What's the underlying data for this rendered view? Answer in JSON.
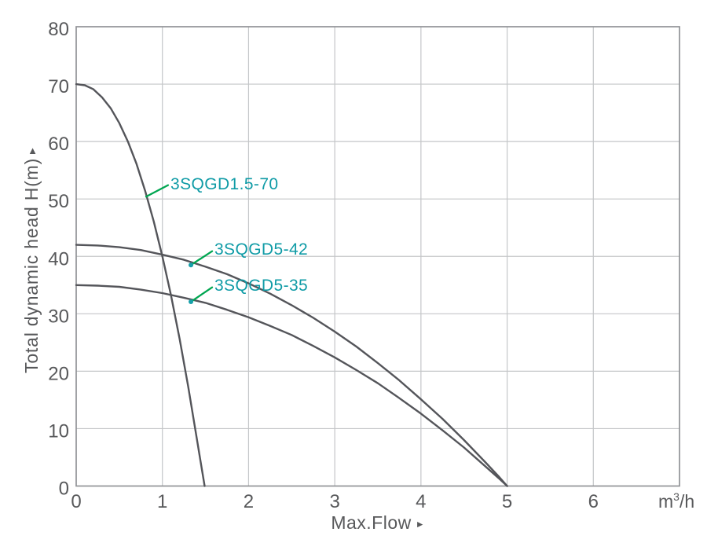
{
  "chart_data": {
    "type": "line",
    "title": "",
    "grid": true,
    "legend": "inline-annotations",
    "x_axis": {
      "title": "Max.Flow",
      "arrow": "►",
      "unit": "m³/h",
      "ticks": [
        0,
        1,
        2,
        3,
        4,
        5,
        6
      ],
      "tick_labels": [
        "0",
        "1",
        "2",
        "3",
        "4",
        "5",
        "6"
      ],
      "range": [
        0,
        7
      ]
    },
    "y_axis": {
      "title": "Total dynamic head H(m)",
      "arrow": "▲",
      "ticks": [
        0,
        10,
        20,
        30,
        40,
        50,
        60,
        70,
        80
      ],
      "tick_labels": [
        "0",
        "10",
        "20",
        "30",
        "40",
        "50",
        "60",
        "70",
        "80"
      ],
      "range": [
        0,
        80
      ]
    },
    "colors": {
      "curve": "#54555a",
      "grid": "#c4c6c8",
      "border": "#919396",
      "tick_text": "#58595b",
      "annotation_text": "#0f9ba6",
      "leader_line": "#00a651",
      "leader_dot": "#16a0aa",
      "background": "#ffffff"
    },
    "series": [
      {
        "name": "3SQGD1.5-70",
        "points": [
          [
            0,
            70
          ],
          [
            0.1,
            69.8
          ],
          [
            0.2,
            69.1
          ],
          [
            0.3,
            67.7
          ],
          [
            0.4,
            65.8
          ],
          [
            0.5,
            63.2
          ],
          [
            0.6,
            60
          ],
          [
            0.7,
            56.1
          ],
          [
            0.8,
            51.4
          ],
          [
            0.9,
            46.1
          ],
          [
            1.0,
            40
          ],
          [
            1.1,
            33.2
          ],
          [
            1.2,
            25.6
          ],
          [
            1.3,
            17.3
          ],
          [
            1.4,
            8.2
          ],
          [
            1.49,
            0
          ]
        ],
        "annotation": {
          "text_at": [
            1.094,
            51.7
          ],
          "leader_from": [
            1.066,
            52.4
          ],
          "leader_to": [
            0.811,
            50.4
          ],
          "dot": false
        }
      },
      {
        "name": "3SQGD5-42",
        "points": [
          [
            0,
            42
          ],
          [
            0.25,
            41.9
          ],
          [
            0.5,
            41.6
          ],
          [
            0.75,
            41.1
          ],
          [
            1,
            40.3
          ],
          [
            1.25,
            39.4
          ],
          [
            1.5,
            38.2
          ],
          [
            1.75,
            36.9
          ],
          [
            2,
            35.3
          ],
          [
            2.25,
            33.5
          ],
          [
            2.5,
            31.5
          ],
          [
            2.75,
            29.3
          ],
          [
            3,
            26.9
          ],
          [
            3.25,
            24.3
          ],
          [
            3.5,
            21.4
          ],
          [
            3.75,
            18.4
          ],
          [
            4,
            15.1
          ],
          [
            4.25,
            11.7
          ],
          [
            4.5,
            8.0
          ],
          [
            4.75,
            4.1
          ],
          [
            4.9,
            1.7
          ],
          [
            5,
            0
          ]
        ],
        "annotation": {
          "text_at": [
            1.604,
            40.3
          ],
          "leader_from": [
            1.577,
            40.9
          ],
          "leader_to": [
            1.331,
            38.5
          ],
          "dot": true
        }
      },
      {
        "name": "3SQGD5-35",
        "points": [
          [
            0,
            35
          ],
          [
            0.25,
            34.9
          ],
          [
            0.5,
            34.7
          ],
          [
            0.75,
            34.2
          ],
          [
            1,
            33.6
          ],
          [
            1.25,
            32.8
          ],
          [
            1.5,
            31.9
          ],
          [
            1.75,
            30.7
          ],
          [
            2,
            29.4
          ],
          [
            2.25,
            27.9
          ],
          [
            2.5,
            26.3
          ],
          [
            2.75,
            24.4
          ],
          [
            3,
            22.4
          ],
          [
            3.25,
            20.2
          ],
          [
            3.5,
            17.9
          ],
          [
            3.75,
            15.3
          ],
          [
            4,
            12.6
          ],
          [
            4.25,
            9.7
          ],
          [
            4.5,
            6.7
          ],
          [
            4.75,
            3.4
          ],
          [
            4.9,
            1.4
          ],
          [
            5,
            0
          ]
        ],
        "annotation": {
          "text_at": [
            1.604,
            34.0
          ],
          "leader_from": [
            1.577,
            34.6
          ],
          "leader_to": [
            1.331,
            32.1
          ],
          "dot": true
        }
      }
    ]
  }
}
